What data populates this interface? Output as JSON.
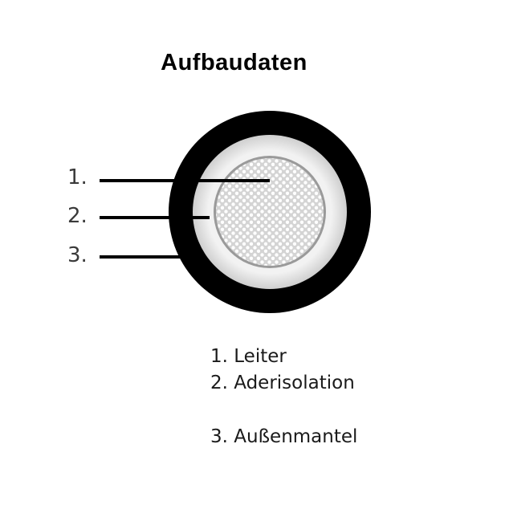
{
  "title": "Aufbaudaten",
  "markers": [
    {
      "label": "1."
    },
    {
      "label": "2."
    },
    {
      "label": "3."
    }
  ],
  "legend": [
    {
      "label": "1. Leiter"
    },
    {
      "label": "2. Aderisolation"
    },
    {
      "label": "3. Außenmantel"
    }
  ],
  "colors": {
    "jacket": "#000000",
    "insulation": "#ebebeb",
    "conductor": "#d8d8d8",
    "strand": "#ffffff",
    "lines": "#000000"
  }
}
